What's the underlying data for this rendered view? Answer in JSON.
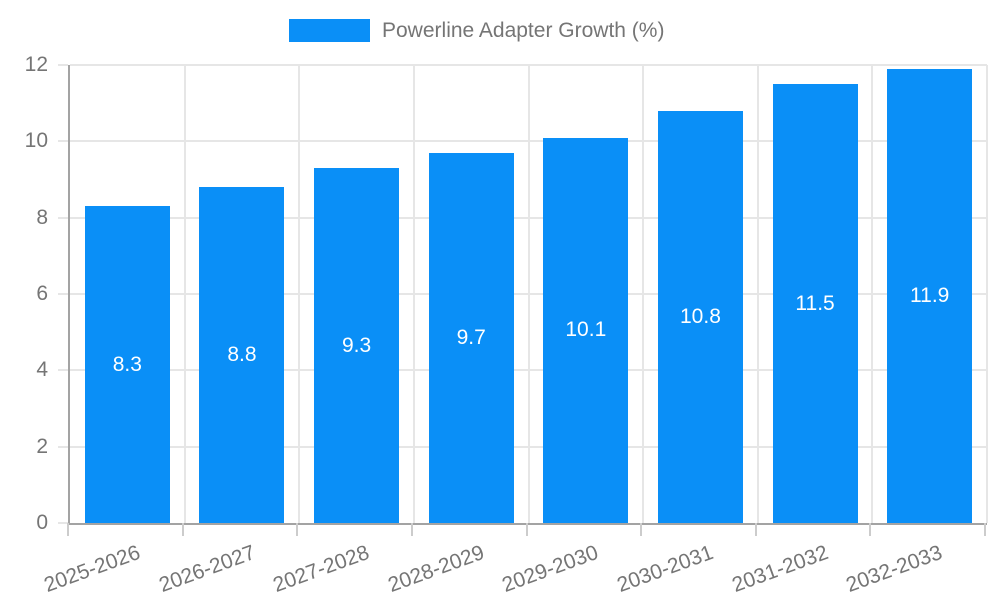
{
  "legend": {
    "label": "Powerline Adapter Growth (%)"
  },
  "colors": {
    "background": "#ffffff",
    "bar": "#0a8ff7",
    "grid": "#e6e6e6",
    "axis": "#a3a3a3",
    "tick": "#cccccc",
    "text": "#757575",
    "value_label": "#ffffff"
  },
  "chart_data": {
    "type": "bar",
    "title": "Powerline Adapter Growth (%)",
    "series_name": "Powerline Adapter Growth (%)",
    "categories": [
      "2025-2026",
      "2026-2027",
      "2027-2028",
      "2028-2029",
      "2029-2030",
      "2030-2031",
      "2031-2032",
      "2032-2033"
    ],
    "values": [
      8.3,
      8.8,
      9.3,
      9.7,
      10.1,
      10.8,
      11.5,
      11.9
    ],
    "bar_labels": [
      "8.3",
      "8.8",
      "9.3",
      "9.7",
      "10.1",
      "10.8",
      "11.5",
      "11.9"
    ],
    "xlabel": "",
    "ylabel": "",
    "ylim": [
      0,
      12
    ],
    "yticks": [
      0,
      2,
      4,
      6,
      8,
      10,
      12
    ],
    "grid": true,
    "legend_position": "top",
    "value_labels_position": "center-inside",
    "xlabel_rotation_deg": -20
  }
}
